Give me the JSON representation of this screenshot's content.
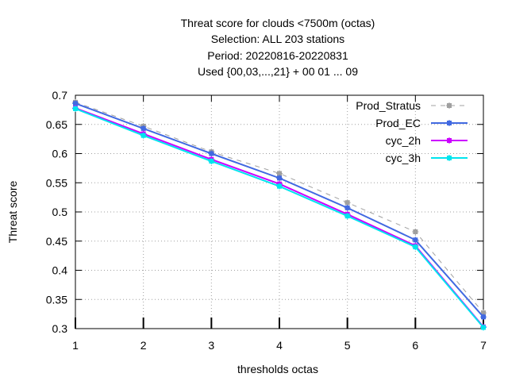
{
  "chart_data": {
    "type": "line",
    "title_lines": [
      "Threat score  for clouds <7500m (octas)",
      "Selection: ALL    203 stations",
      "Period: 20220816-20220831",
      "Used {00,03,...,21} + 00 01 ... 09"
    ],
    "xlabel": "thresholds octas",
    "ylabel": "Threat score",
    "xlim": [
      1,
      7
    ],
    "ylim": [
      0.3,
      0.7
    ],
    "x": [
      1,
      2,
      3,
      4,
      5,
      6,
      7
    ],
    "yticks": [
      "0.3",
      "0.35",
      "0.4",
      "0.45",
      "0.5",
      "0.55",
      "0.6",
      "0.65",
      "0.7"
    ],
    "xticks": [
      "1",
      "2",
      "3",
      "4",
      "5",
      "6",
      "7"
    ],
    "grid": true,
    "legend_position": "top-right",
    "series": [
      {
        "name": "Prod_Stratus",
        "color": "#a0a0a0",
        "dashed": true,
        "values": [
          0.688,
          0.647,
          0.603,
          0.566,
          0.516,
          0.466,
          0.327
        ]
      },
      {
        "name": "Prod_EC",
        "color": "#4169e1",
        "dashed": false,
        "values": [
          0.686,
          0.643,
          0.6,
          0.558,
          0.507,
          0.452,
          0.32
        ]
      },
      {
        "name": "cyc_2h",
        "color": "#cc00ff",
        "dashed": false,
        "values": [
          0.678,
          0.634,
          0.59,
          0.548,
          0.496,
          0.442,
          0.303
        ]
      },
      {
        "name": "cyc_3h",
        "color": "#00e5ee",
        "dashed": false,
        "values": [
          0.677,
          0.631,
          0.587,
          0.544,
          0.493,
          0.44,
          0.302
        ]
      }
    ]
  }
}
